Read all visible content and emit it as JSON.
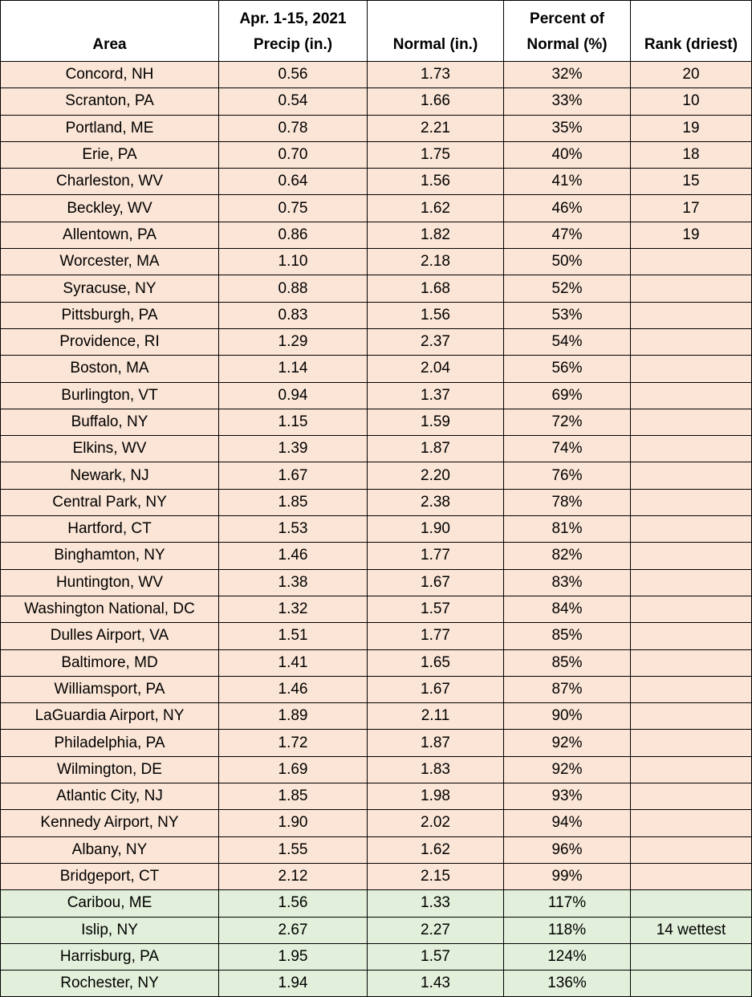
{
  "table": {
    "header": [
      [
        "Area"
      ],
      [
        "Apr. 1-15, 2021",
        "Precip (in.)"
      ],
      [
        "Normal (in.)"
      ],
      [
        "Percent of",
        "Normal (%)"
      ],
      [
        "Rank (driest)"
      ]
    ],
    "rows": [
      [
        "Concord, NH",
        "0.56",
        "1.73",
        "32%",
        "20"
      ],
      [
        "Scranton, PA",
        "0.54",
        "1.66",
        "33%",
        "10"
      ],
      [
        "Portland, ME",
        "0.78",
        "2.21",
        "35%",
        "19"
      ],
      [
        "Erie, PA",
        "0.70",
        "1.75",
        "40%",
        "18"
      ],
      [
        "Charleston, WV",
        "0.64",
        "1.56",
        "41%",
        "15"
      ],
      [
        "Beckley, WV",
        "0.75",
        "1.62",
        "46%",
        "17"
      ],
      [
        "Allentown, PA",
        "0.86",
        "1.82",
        "47%",
        "19"
      ],
      [
        "Worcester, MA",
        "1.10",
        "2.18",
        "50%"
      ],
      [
        "Syracuse, NY",
        "0.88",
        "1.68",
        "52%"
      ],
      [
        "Pittsburgh, PA",
        "0.83",
        "1.56",
        "53%"
      ],
      [
        "Providence, RI",
        "1.29",
        "2.37",
        "54%"
      ],
      [
        "Boston, MA",
        "1.14",
        "2.04",
        "56%"
      ],
      [
        "Burlington, VT",
        "0.94",
        "1.37",
        "69%"
      ],
      [
        "Buffalo, NY",
        "1.15",
        "1.59",
        "72%"
      ],
      [
        "Elkins, WV",
        "1.39",
        "1.87",
        "74%"
      ],
      [
        "Newark, NJ",
        "1.67",
        "2.20",
        "76%"
      ],
      [
        "Central Park, NY",
        "1.85",
        "2.38",
        "78%"
      ],
      [
        "Hartford, CT",
        "1.53",
        "1.90",
        "81%"
      ],
      [
        "Binghamton, NY",
        "1.46",
        "1.77",
        "82%"
      ],
      [
        "Huntington, WV",
        "1.38",
        "1.67",
        "83%"
      ],
      [
        "Washington National, DC",
        "1.32",
        "1.57",
        "84%"
      ],
      [
        "Dulles Airport, VA",
        "1.51",
        "1.77",
        "85%"
      ],
      [
        "Baltimore, MD",
        "1.41",
        "1.65",
        "85%"
      ],
      [
        "Williamsport, PA",
        "1.46",
        "1.67",
        "87%"
      ],
      [
        "LaGuardia Airport, NY",
        "1.89",
        "2.11",
        "90%"
      ],
      [
        "Philadelphia, PA",
        "1.72",
        "1.87",
        "92%"
      ],
      [
        "Wilmington, DE",
        "1.69",
        "1.83",
        "92%"
      ],
      [
        "Atlantic City, NJ",
        "1.85",
        "1.98",
        "93%"
      ],
      [
        "Kennedy Airport, NY",
        "1.90",
        "2.02",
        "94%"
      ],
      [
        "Albany, NY",
        "1.55",
        "1.62",
        "96%"
      ],
      [
        "Bridgeport, CT",
        "2.12",
        "2.15",
        "99%"
      ],
      [
        "Caribou, ME",
        "1.56",
        "1.33",
        "117%"
      ],
      [
        "Islip, NY",
        "2.67",
        "2.27",
        "118%",
        "14 wettest"
      ],
      [
        "Harrisburg, PA",
        "1.95",
        "1.57",
        "124%"
      ],
      [
        "Rochester, NY",
        "1.94",
        "1.43",
        "136%"
      ]
    ],
    "row_fill": [
      "#fbe5d6",
      "#fbe5d6",
      "#fbe5d6",
      "#fbe5d6",
      "#fbe5d6",
      "#fbe5d6",
      "#fbe5d6",
      "#fbe5d6",
      "#fbe5d6",
      "#fbe5d6",
      "#fbe5d6",
      "#fbe5d6",
      "#fbe5d6",
      "#fbe5d6",
      "#fbe5d6",
      "#fbe5d6",
      "#fbe5d6",
      "#fbe5d6",
      "#fbe5d6",
      "#fbe5d6",
      "#fbe5d6",
      "#fbe5d6",
      "#fbe5d6",
      "#fbe5d6",
      "#fbe5d6",
      "#fbe5d6",
      "#fbe5d6",
      "#fbe5d6",
      "#fbe5d6",
      "#fbe5d6",
      "#fbe5d6",
      "#e2efda",
      "#e2efda",
      "#e2efda",
      "#e2efda"
    ]
  }
}
